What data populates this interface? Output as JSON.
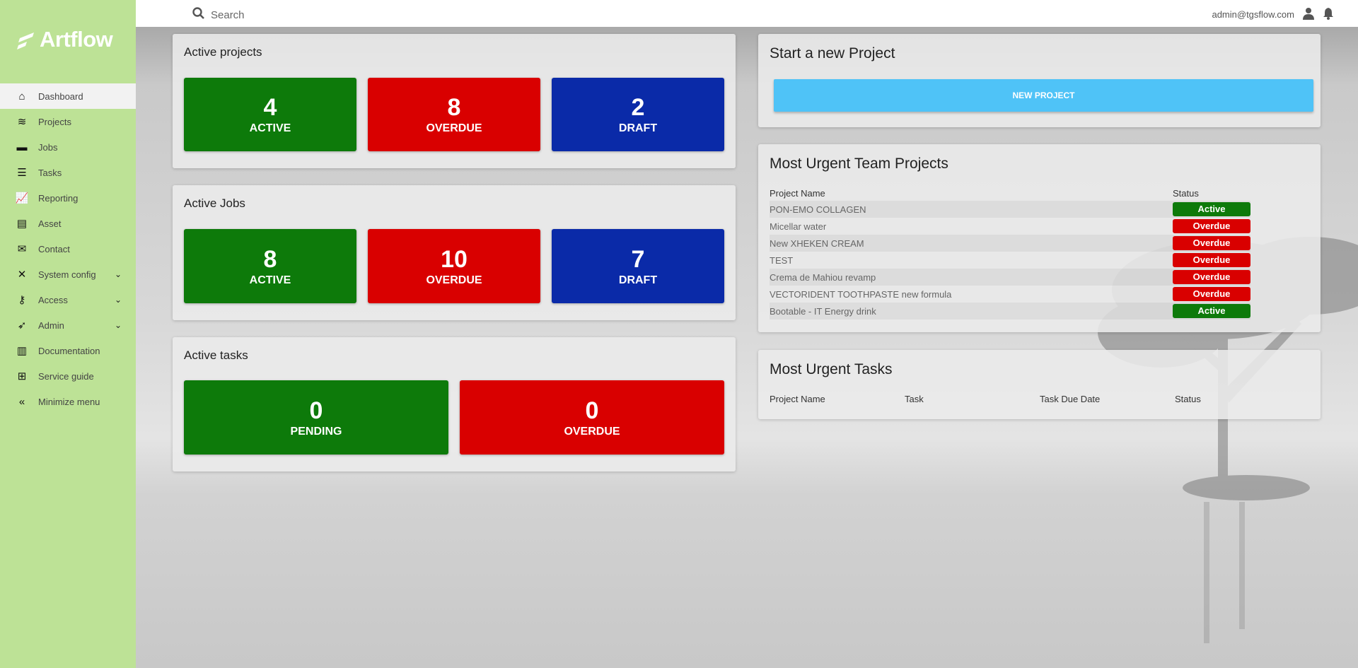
{
  "brand": {
    "name": "Artflow"
  },
  "topbar": {
    "search_placeholder": "Search",
    "user_email": "admin@tgsflow.com"
  },
  "sidebar": {
    "items": [
      {
        "label": "Dashboard",
        "icon": "home-icon",
        "active": true
      },
      {
        "label": "Projects",
        "icon": "layers-icon"
      },
      {
        "label": "Jobs",
        "icon": "server-icon"
      },
      {
        "label": "Tasks",
        "icon": "tasks-icon"
      },
      {
        "label": "Reporting",
        "icon": "chart-line-icon"
      },
      {
        "label": "Asset",
        "icon": "folder-tree-icon"
      },
      {
        "label": "Contact",
        "icon": "envelope-icon"
      },
      {
        "label": "System config",
        "icon": "tools-icon",
        "expandable": true
      },
      {
        "label": "Access",
        "icon": "key-icon",
        "expandable": true
      },
      {
        "label": "Admin",
        "icon": "rocket-icon",
        "expandable": true
      },
      {
        "label": "Documentation",
        "icon": "books-icon"
      },
      {
        "label": "Service guide",
        "icon": "book-plus-icon"
      },
      {
        "label": "Minimize menu",
        "icon": "double-chevron-left-icon"
      }
    ]
  },
  "colors": {
    "green": "#0d7a0a",
    "red": "#d90000",
    "blue": "#0a2aa8",
    "sidebar": "#bde296",
    "accent": "#4fc3f7"
  },
  "active_projects": {
    "title": "Active projects",
    "tiles": [
      {
        "value": "4",
        "label": "ACTIVE"
      },
      {
        "value": "8",
        "label": "OVERDUE"
      },
      {
        "value": "2",
        "label": "DRAFT"
      }
    ]
  },
  "active_jobs": {
    "title": "Active Jobs",
    "tiles": [
      {
        "value": "8",
        "label": "ACTIVE"
      },
      {
        "value": "10",
        "label": "OVERDUE"
      },
      {
        "value": "7",
        "label": "DRAFT"
      }
    ]
  },
  "active_tasks": {
    "title": "Active tasks",
    "tiles": [
      {
        "value": "0",
        "label": "PENDING"
      },
      {
        "value": "0",
        "label": "OVERDUE"
      }
    ]
  },
  "new_project": {
    "title": "Start a new Project",
    "button": "NEW PROJECT"
  },
  "urgent_projects": {
    "title": "Most Urgent Team Projects",
    "columns": [
      "Project Name",
      "Status"
    ],
    "rows": [
      {
        "name": "PON-EMO COLLAGEN",
        "status": "Active"
      },
      {
        "name": "Micellar water",
        "status": "Overdue"
      },
      {
        "name": "New XHEKEN CREAM",
        "status": "Overdue"
      },
      {
        "name": "TEST",
        "status": "Overdue"
      },
      {
        "name": "Crema de Mahiou revamp",
        "status": "Overdue"
      },
      {
        "name": "VECTORIDENT TOOTHPASTE new formula",
        "status": "Overdue"
      },
      {
        "name": "Bootable - IT Energy drink",
        "status": "Active"
      }
    ]
  },
  "urgent_tasks": {
    "title": "Most Urgent Tasks",
    "columns": [
      "Project Name",
      "Task",
      "Task Due Date",
      "Status"
    ]
  }
}
